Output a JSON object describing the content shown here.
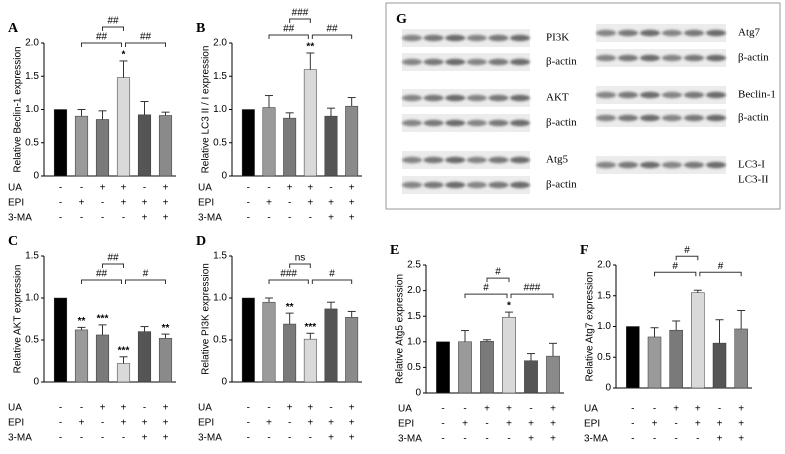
{
  "chart_data": [
    {
      "type": "bar",
      "panel": "A",
      "ylabel": "Relative Beclin-1 expression",
      "ylim": [
        0,
        2
      ],
      "yticks": [
        0,
        0.5,
        {
          "value": 1,
          "label": "1.0"
        },
        1.5,
        {
          "value": 2,
          "label": "2.0"
        }
      ],
      "values": [
        1.0,
        0.9,
        0.85,
        1.48,
        0.92,
        0.91
      ],
      "errors": [
        0,
        0.1,
        0.13,
        0.25,
        0.2,
        0.05
      ],
      "colors": [
        "#000000",
        "#9a9a9a",
        "#7a7a7a",
        "#d9d9d9",
        "#555555",
        "#8a8a8a"
      ],
      "annotations": [
        null,
        null,
        null,
        "*",
        null,
        null
      ],
      "brackets": [
        "##",
        "##",
        "##"
      ],
      "treatments": [
        {
          "name": "UA",
          "signs": [
            "-",
            "-",
            "+",
            "+",
            "-",
            "+"
          ]
        },
        {
          "name": "EPI",
          "signs": [
            "-",
            "+",
            "-",
            "+",
            "+",
            "+"
          ]
        },
        {
          "name": "3-MA",
          "signs": [
            "-",
            "-",
            "-",
            "-",
            "+",
            "+"
          ]
        }
      ]
    },
    {
      "type": "bar",
      "panel": "B",
      "ylabel": "Relative LC3 II / I expression",
      "ylim": [
        0,
        2
      ],
      "yticks": [
        0,
        0.5,
        {
          "value": 1,
          "label": "1.0"
        },
        1.5,
        {
          "value": 2,
          "label": "2.0"
        }
      ],
      "values": [
        1.0,
        1.03,
        0.87,
        1.6,
        0.9,
        1.05
      ],
      "errors": [
        0,
        0.18,
        0.08,
        0.25,
        0.12,
        0.13
      ],
      "colors": [
        "#000000",
        "#9a9a9a",
        "#7a7a7a",
        "#d9d9d9",
        "#555555",
        "#8a8a8a"
      ],
      "annotations": [
        null,
        null,
        null,
        "**",
        null,
        null
      ],
      "brackets": [
        "###",
        "##",
        "##"
      ],
      "treatments": [
        {
          "name": "UA",
          "signs": [
            "-",
            "-",
            "+",
            "+",
            "-",
            "+"
          ]
        },
        {
          "name": "EPI",
          "signs": [
            "-",
            "+",
            "-",
            "+",
            "+",
            "+"
          ]
        },
        {
          "name": "3-MA",
          "signs": [
            "-",
            "-",
            "-",
            "-",
            "+",
            "+"
          ]
        }
      ]
    },
    {
      "type": "bar",
      "panel": "C",
      "ylabel": "Relative AKT expression",
      "ylim": [
        0,
        1.5
      ],
      "yticks": [
        0,
        0.5,
        {
          "value": 1,
          "label": "1.0"
        },
        1.5
      ],
      "values": [
        1.0,
        0.62,
        0.56,
        0.22,
        0.6,
        0.52
      ],
      "errors": [
        0,
        0.03,
        0.12,
        0.08,
        0.06,
        0.05
      ],
      "colors": [
        "#000000",
        "#9a9a9a",
        "#7a7a7a",
        "#d9d9d9",
        "#555555",
        "#8a8a8a"
      ],
      "annotations": [
        null,
        "**",
        "***",
        "***",
        null,
        "**"
      ],
      "brackets": [
        "##",
        "##",
        "#"
      ],
      "treatments": [
        {
          "name": "UA",
          "signs": [
            "-",
            "-",
            "+",
            "+",
            "-",
            "+"
          ]
        },
        {
          "name": "EPI",
          "signs": [
            "-",
            "+",
            "-",
            "+",
            "+",
            "+"
          ]
        },
        {
          "name": "3-MA",
          "signs": [
            "-",
            "-",
            "-",
            "-",
            "+",
            "+"
          ]
        }
      ]
    },
    {
      "type": "bar",
      "panel": "D",
      "ylabel": "Relative PI3K expression",
      "ylim": [
        0,
        1.5
      ],
      "yticks": [
        0,
        0.5,
        {
          "value": 1,
          "label": "1.0"
        },
        1.5
      ],
      "values": [
        1.0,
        0.95,
        0.69,
        0.51,
        0.87,
        0.77
      ],
      "errors": [
        0,
        0.05,
        0.13,
        0.07,
        0.08,
        0.07
      ],
      "colors": [
        "#000000",
        "#9a9a9a",
        "#7a7a7a",
        "#d9d9d9",
        "#555555",
        "#8a8a8a"
      ],
      "annotations": [
        null,
        null,
        "**",
        "***",
        null,
        null
      ],
      "brackets": [
        "ns",
        "###",
        "#"
      ],
      "treatments": [
        {
          "name": "UA",
          "signs": [
            "-",
            "-",
            "+",
            "+",
            "-",
            "+"
          ]
        },
        {
          "name": "EPI",
          "signs": [
            "-",
            "+",
            "-",
            "+",
            "+",
            "+"
          ]
        },
        {
          "name": "3-MA",
          "signs": [
            "-",
            "-",
            "-",
            "-",
            "+",
            "+"
          ]
        }
      ]
    },
    {
      "type": "bar",
      "panel": "E",
      "ylabel": "Relative Atg5 expression",
      "ylim": [
        0,
        2.5
      ],
      "yticks": [
        0,
        0.5,
        {
          "value": 1,
          "label": "1.0"
        },
        1.5,
        {
          "value": 2,
          "label": "2.0"
        },
        2.5
      ],
      "values": [
        1.0,
        1.0,
        1.01,
        1.48,
        0.63,
        0.72
      ],
      "errors": [
        0,
        0.22,
        0.03,
        0.1,
        0.14,
        0.25
      ],
      "colors": [
        "#000000",
        "#9a9a9a",
        "#7a7a7a",
        "#d9d9d9",
        "#555555",
        "#8a8a8a"
      ],
      "annotations": [
        null,
        null,
        null,
        "*",
        null,
        null
      ],
      "brackets": [
        "#",
        "#",
        "###"
      ],
      "treatments": [
        {
          "name": "UA",
          "signs": [
            "-",
            "-",
            "+",
            "+",
            "-",
            "+"
          ]
        },
        {
          "name": "EPI",
          "signs": [
            "-",
            "+",
            "-",
            "+",
            "+",
            "+"
          ]
        },
        {
          "name": "3-MA",
          "signs": [
            "-",
            "-",
            "-",
            "-",
            "+",
            "+"
          ]
        }
      ]
    },
    {
      "type": "bar",
      "panel": "F",
      "ylabel": "Relative Atg7 expression",
      "ylim": [
        0,
        2
      ],
      "yticks": [
        0,
        0.5,
        {
          "value": 1,
          "label": "1.0"
        },
        1.5,
        {
          "value": 2,
          "label": "2.0"
        }
      ],
      "values": [
        1.0,
        0.83,
        0.94,
        1.55,
        0.73,
        0.96
      ],
      "errors": [
        0,
        0.15,
        0.15,
        0.04,
        0.38,
        0.3
      ],
      "colors": [
        "#000000",
        "#9a9a9a",
        "#7a7a7a",
        "#d9d9d9",
        "#555555",
        "#8a8a8a"
      ],
      "annotations": [
        null,
        null,
        null,
        null,
        null,
        null
      ],
      "brackets": [
        "#",
        "#",
        "#"
      ],
      "treatments": [
        {
          "name": "UA",
          "signs": [
            "-",
            "-",
            "+",
            "+",
            "-",
            "+"
          ]
        },
        {
          "name": "EPI",
          "signs": [
            "-",
            "+",
            "-",
            "+",
            "+",
            "+"
          ]
        },
        {
          "name": "3-MA",
          "signs": [
            "-",
            "-",
            "-",
            "-",
            "+",
            "+"
          ]
        }
      ]
    }
  ],
  "blot": {
    "panel": "G",
    "left": [
      "PI3K",
      "β-actin",
      "AKT",
      "β-actin",
      "Atg5",
      "β-actin"
    ],
    "right": [
      "Atg7",
      "β-actin",
      "Beclin-1",
      "β-actin",
      "LC3-I",
      "LC3-II"
    ]
  }
}
